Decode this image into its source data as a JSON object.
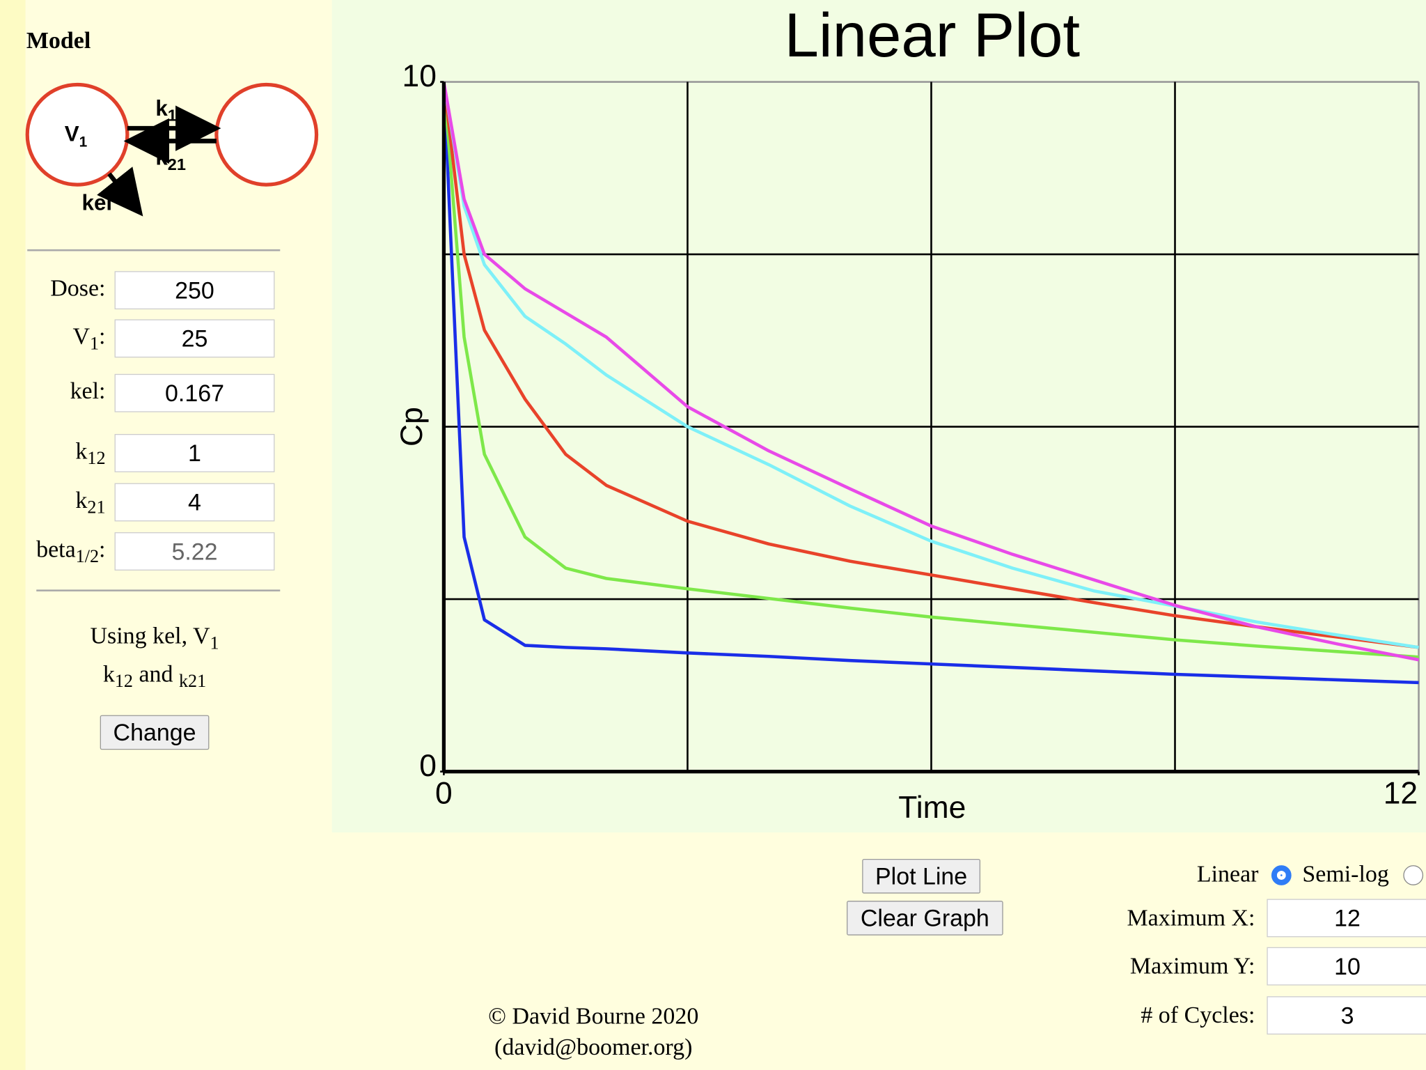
{
  "sidebar": {
    "heading": "Model",
    "diagram": {
      "v1": "V",
      "v1_sub": "1",
      "k12": "k",
      "k12_sub": "12",
      "k21": "k",
      "k21_sub": "21",
      "kel": "kel"
    },
    "fields": [
      {
        "label": "Dose:",
        "value": "250"
      },
      {
        "label": "V",
        "label_sub": "1",
        "label_end": ":",
        "value": "25"
      },
      {
        "label": "kel:",
        "value": "0.167"
      },
      {
        "label": "k",
        "label_sub": "12",
        "value": "1"
      },
      {
        "label": "k",
        "label_sub": "21",
        "value": "4"
      },
      {
        "label": "beta",
        "label_sub": "1/2",
        "label_end": ":",
        "value": "5.22"
      }
    ],
    "note": [
      "Using kel, V",
      "1",
      "k",
      "12",
      " and ",
      "k21"
    ],
    "button": "Change"
  },
  "chart_data": {
    "type": "line",
    "title": "Linear Plot",
    "x_label": "Time",
    "y_label": "Cp",
    "x": [
      0,
      0.25,
      0.5,
      1,
      1.5,
      2,
      3,
      4,
      5,
      6,
      7,
      8,
      9,
      10,
      11,
      12
    ],
    "series": [
      {
        "color": "#1a2ee8",
        "values": [
          10,
          3.4,
          2.2,
          1.83,
          1.8,
          1.78,
          1.72,
          1.67,
          1.61,
          1.56,
          1.51,
          1.46,
          1.41,
          1.37,
          1.33,
          1.29
        ]
      },
      {
        "color": "#7ee84a",
        "values": [
          10,
          6.3,
          4.6,
          3.4,
          2.95,
          2.8,
          2.65,
          2.51,
          2.37,
          2.24,
          2.13,
          2.02,
          1.91,
          1.82,
          1.74,
          1.66
        ]
      },
      {
        "color": "#e8432a",
        "values": [
          10,
          7.5,
          6.4,
          5.4,
          4.6,
          4.15,
          3.63,
          3.3,
          3.05,
          2.85,
          2.65,
          2.45,
          2.26,
          2.1,
          1.95,
          1.8
        ]
      },
      {
        "color": "#7ef0f8",
        "values": [
          10,
          8.2,
          7.35,
          6.6,
          6.2,
          5.75,
          5.0,
          4.45,
          3.85,
          3.34,
          2.95,
          2.62,
          2.4,
          2.17,
          1.98,
          1.8
        ]
      },
      {
        "color": "#e84ae8",
        "values": [
          10,
          8.3,
          7.5,
          7.0,
          6.65,
          6.3,
          5.29,
          4.65,
          4.1,
          3.56,
          3.15,
          2.78,
          2.41,
          2.1,
          1.85,
          1.62
        ]
      }
    ],
    "xlim": [
      0,
      12
    ],
    "ylim": [
      0,
      10
    ],
    "xticks": [
      0,
      12
    ],
    "yticks": [
      0,
      10
    ],
    "xgrid": [
      3,
      6,
      9
    ],
    "ygrid": [
      2.5,
      5,
      7.5
    ]
  },
  "controls": {
    "plot_button": "Plot Line",
    "clear_button": "Clear Graph",
    "scale_options": [
      "Linear",
      "Semi-log"
    ],
    "selected": "Linear",
    "fields": [
      {
        "label": "Maximum X:",
        "value": "12"
      },
      {
        "label": "Maximum Y:",
        "value": "10"
      },
      {
        "label": "# of Cycles:",
        "value": "3"
      }
    ]
  },
  "footer": [
    "© David Bourne 2020",
    "(david@boomer.org)"
  ]
}
